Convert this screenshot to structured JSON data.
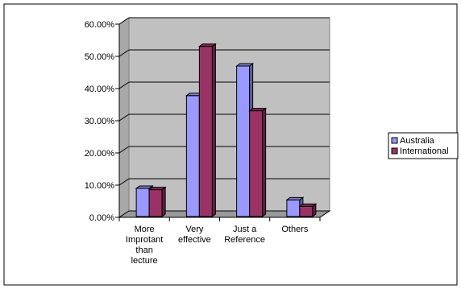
{
  "chart_data": {
    "type": "bar",
    "title": "",
    "xlabel": "",
    "ylabel": "",
    "categories": [
      [
        "More",
        "Improtant",
        "than",
        "lecture"
      ],
      [
        "Very",
        "effective"
      ],
      [
        "Just a",
        "Reference"
      ],
      [
        "Others"
      ]
    ],
    "series": [
      {
        "name": "Australia",
        "values": [
          9.0,
          37.8,
          47.0,
          5.4
        ],
        "color": "#9999ff"
      },
      {
        "name": "International",
        "values": [
          8.6,
          53.1,
          33.1,
          3.4
        ],
        "color": "#993366"
      }
    ],
    "ylim": [
      0,
      60
    ],
    "y_ticks": [
      "0.00%",
      "10.00%",
      "20.00%",
      "30.00%",
      "40.00%",
      "50.00%",
      "60.00%"
    ],
    "grid": true,
    "legend_position": "right",
    "plot_background": "#c0c0c0",
    "three_d": true
  }
}
